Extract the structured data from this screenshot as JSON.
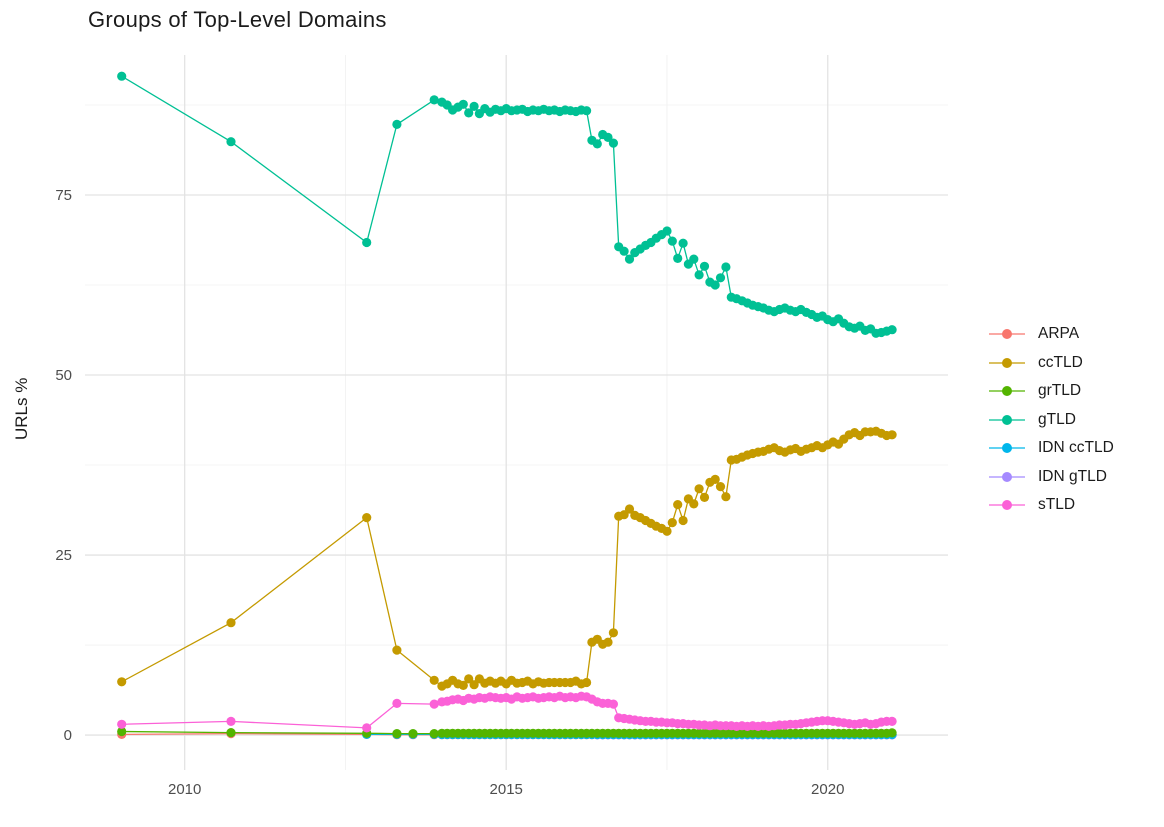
{
  "chart_data": {
    "type": "line",
    "title": "Groups of Top-Level Domains",
    "xlabel": "",
    "ylabel": "URLs %",
    "grid": true,
    "legend_position": "right",
    "x_range": [
      2008.45,
      2021.87
    ],
    "y_range": [
      -4.85,
      94.44
    ],
    "x_tick_values": [
      2010,
      2015,
      2020
    ],
    "x_tick_labels": [
      "2010",
      "2015",
      "2020"
    ],
    "x_minor_gridlines": [
      2012.5,
      2017.5
    ],
    "y_tick_values": [
      0,
      25,
      50,
      75
    ],
    "y_tick_labels": [
      "0",
      "25",
      "50",
      "75"
    ],
    "y_minor_gridlines": [
      12.5,
      37.5,
      62.5,
      87.5
    ],
    "draw_order": [
      "ARPA",
      "IDN gTLD",
      "IDN ccTLD",
      "grTLD",
      "ccTLD",
      "gTLD",
      "sTLD"
    ],
    "x": [
      2009.02,
      2010.72,
      2012.83,
      2013.3,
      2013.55,
      2013.88,
      2014.0,
      2014.083,
      2014.167,
      2014.25,
      2014.333,
      2014.417,
      2014.5,
      2014.583,
      2014.667,
      2014.75,
      2014.833,
      2014.917,
      2015.0,
      2015.083,
      2015.167,
      2015.25,
      2015.333,
      2015.417,
      2015.5,
      2015.583,
      2015.667,
      2015.75,
      2015.833,
      2015.917,
      2016.0,
      2016.083,
      2016.167,
      2016.25,
      2016.333,
      2016.417,
      2016.5,
      2016.583,
      2016.667,
      2016.75,
      2016.833,
      2016.917,
      2017.0,
      2017.083,
      2017.167,
      2017.25,
      2017.333,
      2017.417,
      2017.5,
      2017.583,
      2017.667,
      2017.75,
      2017.833,
      2017.917,
      2018.0,
      2018.083,
      2018.167,
      2018.25,
      2018.333,
      2018.417,
      2018.5,
      2018.583,
      2018.667,
      2018.75,
      2018.833,
      2018.917,
      2019.0,
      2019.083,
      2019.167,
      2019.25,
      2019.333,
      2019.417,
      2019.5,
      2019.583,
      2019.667,
      2019.75,
      2019.833,
      2019.917,
      2020.0,
      2020.083,
      2020.167,
      2020.25,
      2020.333,
      2020.417,
      2020.5,
      2020.583,
      2020.667,
      2020.75,
      2020.833,
      2020.917,
      2021.0
    ],
    "series": [
      {
        "name": "ARPA",
        "color": "#F8766D",
        "values": [
          0.1,
          0.2,
          0.1,
          0.05,
          0.05,
          0.05,
          0.05,
          0.05,
          0.05,
          0.05,
          0.05,
          0.05,
          0.05,
          0.05,
          0.05,
          0.05,
          0.05,
          0.05,
          0.05,
          0.05,
          0.05,
          0.05,
          0.05,
          0.05,
          0.05,
          0.05,
          0.05,
          0.05,
          0.05,
          0.05,
          0.05,
          0.05,
          0.05,
          0.05,
          0.05,
          0.05,
          0.05,
          0.05,
          0.05,
          0.05,
          0.05,
          0.05,
          0.05,
          0.05,
          0.05,
          0.05,
          0.05,
          0.05,
          0.05,
          0.05,
          0.05,
          0.05,
          0.05,
          0.05,
          0.05,
          0.05,
          0.05,
          0.05,
          0.05,
          0.05,
          0.05,
          0.05,
          0.05,
          0.05,
          0.05,
          0.05,
          0.05,
          0.05,
          0.05,
          0.05,
          0.05,
          0.05,
          0.05,
          0.05,
          0.05,
          0.05,
          0.05,
          0.05,
          0.05,
          0.05,
          0.05,
          0.05,
          0.05,
          0.05,
          0.05,
          0.05,
          0.05,
          0.05,
          0.05,
          0.05,
          0.05
        ]
      },
      {
        "name": "ccTLD",
        "color": "#C49A00",
        "values": [
          7.4,
          15.6,
          30.2,
          11.8,
          null,
          7.6,
          6.8,
          7.1,
          7.6,
          7.1,
          6.9,
          7.8,
          7.0,
          7.8,
          7.2,
          7.5,
          7.2,
          7.5,
          7.1,
          7.6,
          7.2,
          7.3,
          7.5,
          7.1,
          7.4,
          7.2,
          7.3,
          7.3,
          7.3,
          7.3,
          7.3,
          7.5,
          7.1,
          7.3,
          12.9,
          13.3,
          12.6,
          12.9,
          14.2,
          30.4,
          30.6,
          31.4,
          30.5,
          30.2,
          29.8,
          29.4,
          29.0,
          28.7,
          28.3,
          29.5,
          32.0,
          29.8,
          32.8,
          32.1,
          34.2,
          33.0,
          35.1,
          35.5,
          34.5,
          33.1,
          38.2,
          38.3,
          38.6,
          38.9,
          39.1,
          39.3,
          39.4,
          39.7,
          39.9,
          39.5,
          39.3,
          39.6,
          39.8,
          39.4,
          39.7,
          39.9,
          40.2,
          39.9,
          40.3,
          40.7,
          40.4,
          41.1,
          41.7,
          42.0,
          41.6,
          42.1,
          42.1,
          42.2,
          41.9,
          41.6,
          41.7
        ]
      },
      {
        "name": "grTLD",
        "color": "#53B400",
        "values": [
          0.5,
          0.35,
          0.25,
          0.2,
          0.2,
          0.2,
          0.25,
          0.25,
          0.25,
          0.25,
          0.25,
          0.25,
          0.25,
          0.25,
          0.25,
          0.25,
          0.25,
          0.25,
          0.25,
          0.25,
          0.25,
          0.25,
          0.25,
          0.25,
          0.25,
          0.25,
          0.25,
          0.25,
          0.25,
          0.25,
          0.25,
          0.25,
          0.25,
          0.25,
          0.25,
          0.25,
          0.25,
          0.25,
          0.25,
          0.25,
          0.25,
          0.25,
          0.25,
          0.25,
          0.25,
          0.25,
          0.25,
          0.25,
          0.25,
          0.25,
          0.25,
          0.25,
          0.25,
          0.25,
          0.25,
          0.25,
          0.25,
          0.25,
          0.25,
          0.25,
          0.25,
          0.25,
          0.25,
          0.25,
          0.25,
          0.25,
          0.25,
          0.25,
          0.25,
          0.25,
          0.25,
          0.25,
          0.25,
          0.25,
          0.25,
          0.25,
          0.25,
          0.25,
          0.25,
          0.25,
          0.25,
          0.25,
          0.25,
          0.25,
          0.25,
          0.25,
          0.25,
          0.25,
          0.25,
          0.25,
          0.3
        ]
      },
      {
        "name": "gTLD",
        "color": "#00C094",
        "values": [
          91.5,
          82.4,
          68.4,
          84.8,
          null,
          88.2,
          87.9,
          87.5,
          86.8,
          87.2,
          87.6,
          86.4,
          87.3,
          86.3,
          87.0,
          86.5,
          86.9,
          86.7,
          87.0,
          86.7,
          86.8,
          86.9,
          86.6,
          86.8,
          86.7,
          86.9,
          86.7,
          86.8,
          86.6,
          86.8,
          86.7,
          86.6,
          86.8,
          86.7,
          82.6,
          82.1,
          83.4,
          83.0,
          82.2,
          67.8,
          67.2,
          66.1,
          67.0,
          67.5,
          68.0,
          68.4,
          69.0,
          69.5,
          70.0,
          68.6,
          66.2,
          68.3,
          65.4,
          66.1,
          63.9,
          65.1,
          62.9,
          62.5,
          63.5,
          65.0,
          60.8,
          60.6,
          60.3,
          60.0,
          59.7,
          59.5,
          59.3,
          59.0,
          58.8,
          59.1,
          59.3,
          59.0,
          58.8,
          59.1,
          58.7,
          58.4,
          58.0,
          58.2,
          57.7,
          57.4,
          57.8,
          57.2,
          56.7,
          56.5,
          56.8,
          56.2,
          56.4,
          55.8,
          55.9,
          56.1,
          56.3
        ]
      },
      {
        "name": "IDN ccTLD",
        "color": "#00B6EB",
        "values": [
          null,
          null,
          0.1,
          0.1,
          0.1,
          0.1,
          0.08,
          0.08,
          0.08,
          0.08,
          0.08,
          0.08,
          0.08,
          0.08,
          0.08,
          0.08,
          0.08,
          0.08,
          0.08,
          0.08,
          0.08,
          0.08,
          0.08,
          0.08,
          0.08,
          0.08,
          0.08,
          0.08,
          0.08,
          0.08,
          0.08,
          0.08,
          0.08,
          0.08,
          0.08,
          0.08,
          0.08,
          0.08,
          0.08,
          0.08,
          0.08,
          0.08,
          0.08,
          0.08,
          0.08,
          0.08,
          0.08,
          0.08,
          0.08,
          0.08,
          0.08,
          0.08,
          0.08,
          0.08,
          0.08,
          0.08,
          0.08,
          0.08,
          0.08,
          0.08,
          0.08,
          0.08,
          0.08,
          0.08,
          0.08,
          0.08,
          0.08,
          0.08,
          0.08,
          0.08,
          0.08,
          0.08,
          0.08,
          0.08,
          0.08,
          0.08,
          0.08,
          0.08,
          0.08,
          0.08,
          0.08,
          0.08,
          0.08,
          0.08,
          0.08,
          0.08,
          0.08,
          0.08,
          0.08,
          0.08,
          0.08
        ]
      },
      {
        "name": "IDN gTLD",
        "color": "#A58AFF",
        "values": [
          null,
          null,
          null,
          null,
          null,
          null,
          null,
          null,
          null,
          null,
          null,
          null,
          null,
          null,
          null,
          null,
          null,
          null,
          null,
          null,
          null,
          null,
          null,
          null,
          null,
          null,
          null,
          null,
          null,
          null,
          null,
          null,
          null,
          null,
          null,
          0.02,
          0.02,
          0.02,
          0.02,
          0.02,
          0.02,
          0.02,
          0.02,
          0.02,
          0.02,
          0.02,
          0.02,
          0.02,
          0.02,
          0.02,
          0.02,
          0.02,
          0.02,
          0.02,
          0.02,
          0.02,
          0.02,
          0.02,
          0.02,
          0.02,
          0.02,
          0.02,
          0.02,
          0.02,
          0.02,
          0.02,
          0.02,
          0.02,
          0.02,
          0.02,
          0.02,
          0.02,
          0.02,
          0.02,
          0.02,
          0.02,
          0.02,
          0.02,
          0.02,
          0.02,
          0.02,
          0.02,
          0.02,
          0.02,
          0.02,
          0.02,
          0.02,
          0.02,
          0.02,
          0.02,
          0.02
        ]
      },
      {
        "name": "sTLD",
        "color": "#FB61D7",
        "values": [
          1.5,
          1.9,
          1.0,
          4.4,
          null,
          4.3,
          4.6,
          4.7,
          4.9,
          5.0,
          4.8,
          5.1,
          5.0,
          5.2,
          5.1,
          5.3,
          5.2,
          5.1,
          5.2,
          5.0,
          5.3,
          5.1,
          5.2,
          5.3,
          5.1,
          5.2,
          5.3,
          5.2,
          5.4,
          5.2,
          5.3,
          5.2,
          5.4,
          5.3,
          5.0,
          4.6,
          4.4,
          4.4,
          4.3,
          2.4,
          2.3,
          2.2,
          2.1,
          2.0,
          1.9,
          1.9,
          1.8,
          1.8,
          1.7,
          1.7,
          1.6,
          1.6,
          1.5,
          1.5,
          1.4,
          1.4,
          1.3,
          1.4,
          1.3,
          1.3,
          1.3,
          1.2,
          1.3,
          1.2,
          1.3,
          1.2,
          1.3,
          1.2,
          1.3,
          1.4,
          1.4,
          1.5,
          1.5,
          1.6,
          1.7,
          1.8,
          1.9,
          2.0,
          2.0,
          1.9,
          1.8,
          1.7,
          1.6,
          1.5,
          1.6,
          1.7,
          1.5,
          1.6,
          1.8,
          1.9,
          1.9
        ]
      }
    ]
  }
}
